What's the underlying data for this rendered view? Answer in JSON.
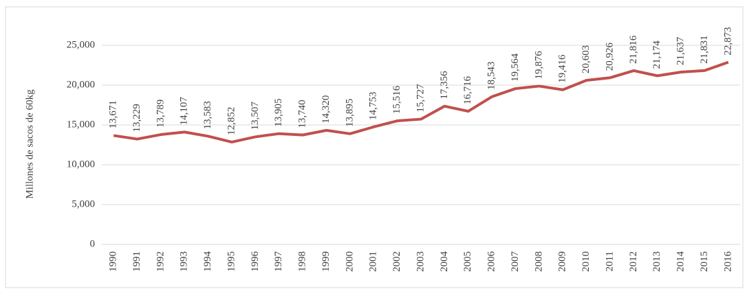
{
  "chart_data": {
    "type": "line",
    "y_label": "Millones de sacos de 60kg",
    "categories": [
      "1990",
      "1991",
      "1992",
      "1993",
      "1994",
      "1995",
      "1996",
      "1997",
      "1998",
      "1999",
      "2000",
      "2001",
      "2002",
      "2003",
      "2004",
      "2005",
      "2006",
      "2007",
      "2008",
      "2009",
      "2010",
      "2011",
      "2012",
      "2013",
      "2014",
      "2015",
      "2016"
    ],
    "series": [
      {
        "color": "#c0504d",
        "values": [
          13671,
          13229,
          13789,
          14107,
          13583,
          12852,
          13507,
          13905,
          13740,
          14320,
          13895,
          14753,
          15516,
          15727,
          17356,
          16716,
          18543,
          19564,
          19876,
          19416,
          20603,
          20926,
          21816,
          21174,
          21637,
          21831,
          22873
        ],
        "value_labels": [
          "13,671",
          "13,229",
          "13,789",
          "14,107",
          "13,583",
          "12,852",
          "13,507",
          "13,905",
          "13,740",
          "14,320",
          "13,895",
          "14,753",
          "15,516",
          "15,727",
          "17,356",
          "16,716",
          "18,543",
          "19,564",
          "19,876",
          "19,416",
          "20,603",
          "20,926",
          "21,816",
          "21,174",
          "21,637",
          "21,831",
          "22,873"
        ]
      }
    ],
    "ylim": [
      0,
      25000
    ],
    "yticks": [
      0,
      {
        "value": 5000,
        "label": "5,000"
      },
      {
        "value": 10000,
        "label": "10,000"
      },
      {
        "value": 15000,
        "label": "15,000"
      },
      {
        "value": 20000,
        "label": "20,000"
      },
      {
        "value": 25000,
        "label": "25,000"
      }
    ],
    "grid": true
  }
}
